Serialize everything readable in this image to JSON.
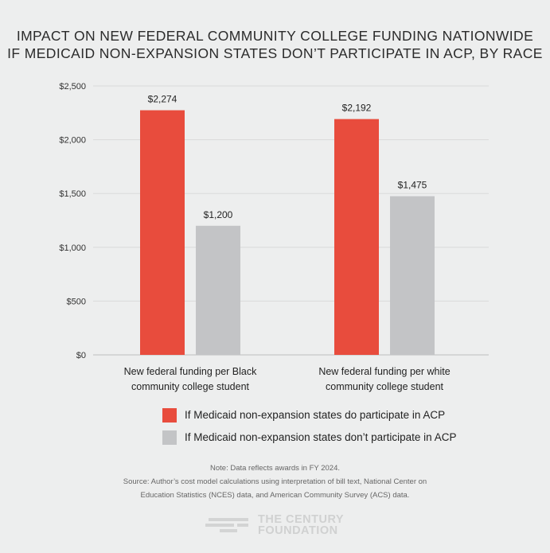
{
  "chart_data": {
    "type": "bar",
    "title_lines": [
      "IMPACT ON NEW FEDERAL COMMUNITY COLLEGE FUNDING NATIONWIDE",
      "IF MEDICAID NON-EXPANSION STATES DON’T PARTICIPATE IN ACP, BY RACE"
    ],
    "categories": [
      [
        "New federal funding per Black",
        "community college student"
      ],
      [
        "New federal funding per white",
        "community college student"
      ]
    ],
    "series": [
      {
        "name": "If Medicaid non-expansion states do participate in ACP",
        "color": "#e84c3d",
        "values": [
          2274,
          2192
        ],
        "labels": [
          "$2,274",
          "$2,192"
        ]
      },
      {
        "name": "If Medicaid non-expansion states don’t  participate in ACP",
        "color": "#c3c4c6",
        "values": [
          1200,
          1475
        ],
        "labels": [
          "$1,200",
          "$1,475"
        ]
      }
    ],
    "ylim": [
      0,
      2500
    ],
    "yticks": [
      0,
      500,
      1000,
      1500,
      2000,
      2500
    ],
    "ytick_labels": [
      "$0",
      "$500",
      "$1,000",
      "$1,500",
      "$2,000",
      "$2,500"
    ],
    "grid": true,
    "legend_position": "bottom"
  },
  "notes": {
    "line1": "Note: Data reflects awards in FY 2024.",
    "line2": "Source: Author’s cost model calculations using interpretation of bill text, National Center on",
    "line3": "Education Statistics (NCES) data, and American Community Survey (ACS) data."
  },
  "logo": {
    "line1": "THE CENTURY",
    "line2": "FOUNDATION"
  }
}
